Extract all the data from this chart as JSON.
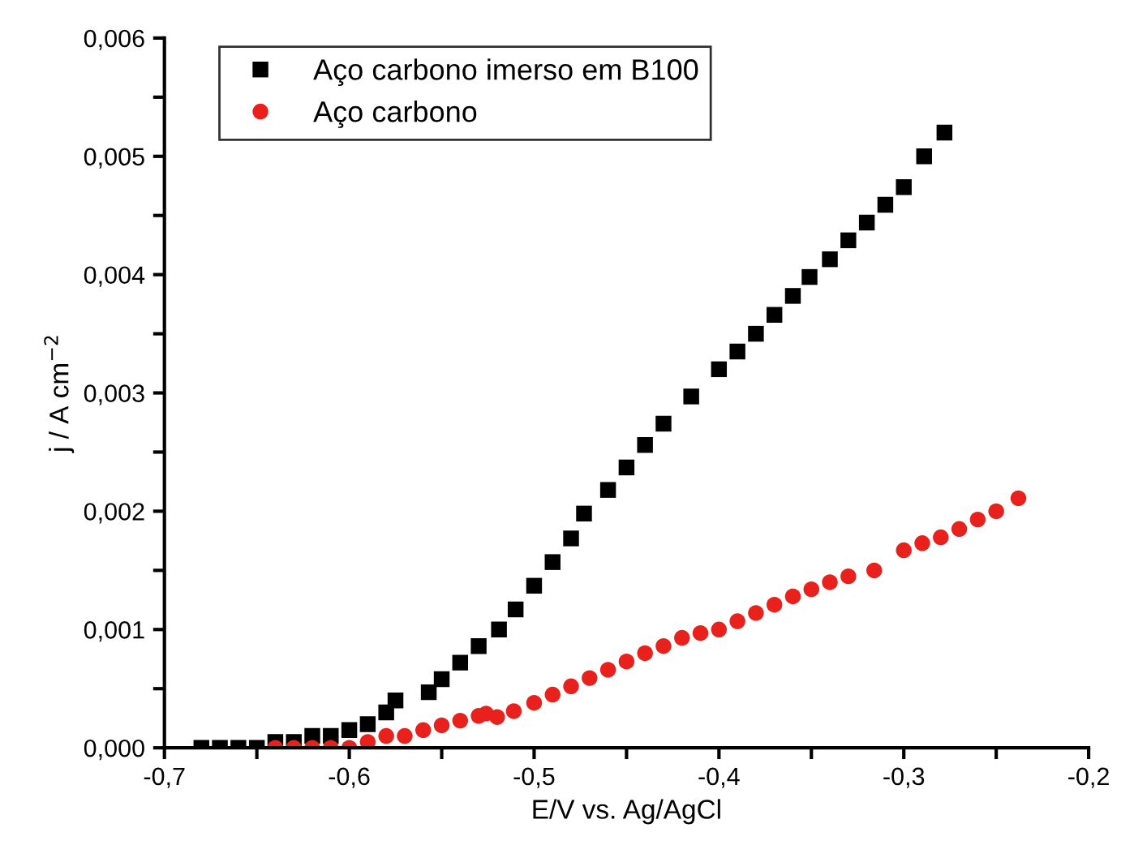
{
  "chart_data": {
    "type": "scatter",
    "xlabel": "E/V vs. Ag/AgCl",
    "ylabel": "j / A cm$^{−2}$",
    "legend": "top left",
    "grid": false,
    "xlim": [
      -0.7,
      -0.2
    ],
    "xticks": [
      {
        "value": -0.7,
        "label": "-0,7"
      },
      {
        "value": -0.65,
        "label": null
      },
      {
        "value": -0.6,
        "label": "-0,6"
      },
      {
        "value": -0.55,
        "label": null
      },
      {
        "value": -0.5,
        "label": "-0,5"
      },
      {
        "value": -0.45,
        "label": null
      },
      {
        "value": -0.4,
        "label": "-0,4"
      },
      {
        "value": -0.35,
        "label": null
      },
      {
        "value": -0.3,
        "label": "-0,3"
      },
      {
        "value": -0.25,
        "label": null
      },
      {
        "value": -0.2,
        "label": "-0,2"
      }
    ],
    "ylim": [
      0,
      0.006
    ],
    "yticks": [
      {
        "value": 0,
        "label": "0,000"
      },
      {
        "value": 0.0005,
        "label": null
      },
      {
        "value": 0.001,
        "label": "0,001"
      },
      {
        "value": 0.0015,
        "label": null
      },
      {
        "value": 0.002,
        "label": "0,002"
      },
      {
        "value": 0.0025,
        "label": null
      },
      {
        "value": 0.003,
        "label": "0,003"
      },
      {
        "value": 0.0035,
        "label": null
      },
      {
        "value": 0.004,
        "label": "0,004"
      },
      {
        "value": 0.0045,
        "label": null
      },
      {
        "value": 0.005,
        "label": "0,005"
      },
      {
        "value": 0.0055,
        "label": null
      },
      {
        "value": 0.006,
        "label": "0,006"
      }
    ],
    "series": [
      {
        "name": "Aço carbono imerso em B100",
        "color": "#000000",
        "marker": "square",
        "x": [
          -0.68,
          -0.67,
          -0.66,
          -0.65,
          -0.64,
          -0.63,
          -0.62,
          -0.61,
          -0.6,
          -0.59,
          -0.58,
          -0.575,
          -0.557,
          -0.55,
          -0.54,
          -0.53,
          -0.519,
          -0.51,
          -0.5,
          -0.49,
          -0.48,
          -0.473,
          -0.46,
          -0.45,
          -0.44,
          -0.43,
          -0.415,
          -0.4,
          -0.39,
          -0.38,
          -0.37,
          -0.36,
          -0.351,
          -0.34,
          -0.33,
          -0.32,
          -0.31,
          -0.3,
          -0.289,
          -0.278
        ],
        "values": [
          0,
          0,
          0,
          0,
          5e-05,
          5e-05,
          0.0001,
          0.0001,
          0.00015,
          0.0002,
          0.0003,
          0.0004,
          0.00047,
          0.00058,
          0.00072,
          0.00086,
          0.001,
          0.00117,
          0.00137,
          0.00157,
          0.00177,
          0.00198,
          0.00218,
          0.00237,
          0.00256,
          0.00274,
          0.00297,
          0.0032,
          0.00335,
          0.0035,
          0.00366,
          0.00382,
          0.00398,
          0.00413,
          0.00429,
          0.00444,
          0.00459,
          0.00474,
          0.005,
          0.0052
        ]
      },
      {
        "name": "Aço carbono",
        "color": "#e8211c",
        "marker": "circle",
        "x": [
          -0.64,
          -0.63,
          -0.62,
          -0.61,
          -0.6,
          -0.59,
          -0.58,
          -0.57,
          -0.56,
          -0.55,
          -0.54,
          -0.53,
          -0.526,
          -0.52,
          -0.511,
          -0.5,
          -0.49,
          -0.48,
          -0.47,
          -0.46,
          -0.45,
          -0.44,
          -0.43,
          -0.42,
          -0.41,
          -0.4,
          -0.39,
          -0.38,
          -0.37,
          -0.36,
          -0.35,
          -0.34,
          -0.33,
          -0.316,
          -0.3,
          -0.29,
          -0.28,
          -0.27,
          -0.26,
          -0.25,
          -0.238
        ],
        "values": [
          0,
          0,
          0,
          0,
          0,
          5e-05,
          0.0001,
          0.0001,
          0.00015,
          0.00019,
          0.00023,
          0.00027,
          0.00029,
          0.00026,
          0.00031,
          0.00038,
          0.00045,
          0.00052,
          0.00059,
          0.00066,
          0.00073,
          0.0008,
          0.00086,
          0.00093,
          0.00097,
          0.001,
          0.00107,
          0.00114,
          0.00121,
          0.00128,
          0.00134,
          0.0014,
          0.00145,
          0.0015,
          0.00167,
          0.00173,
          0.00178,
          0.00185,
          0.00193,
          0.002,
          0.00211
        ]
      }
    ]
  }
}
